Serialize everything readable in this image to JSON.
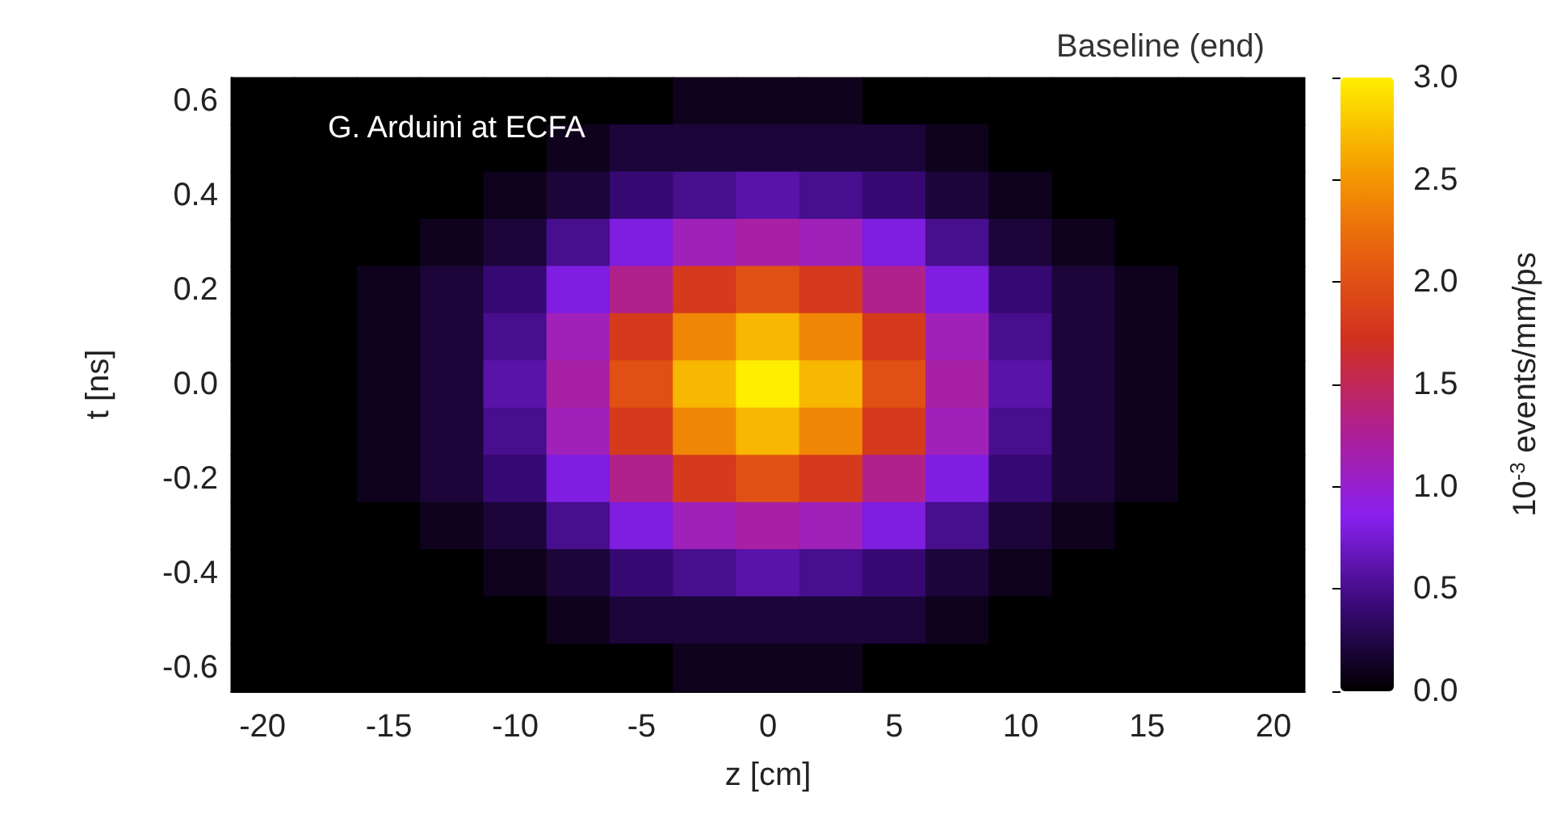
{
  "chart_data": {
    "type": "heatmap",
    "title": "Baseline (end)",
    "xlabel": "z [cm]",
    "ylabel": "t [ns]",
    "clabel": "10$^{-3}$ events/mm/ps",
    "annotations": [
      "G. Arduini at ECFA"
    ],
    "categories": [
      "-20",
      null,
      "-15",
      null,
      "-10",
      null,
      "-5",
      null,
      "0",
      null,
      "5",
      null,
      "10",
      null,
      "15",
      null,
      "20"
    ],
    "y_categories": [
      "0.6",
      null,
      "0.4",
      null,
      "0.2",
      null,
      "0.0",
      null,
      "-0.2",
      null,
      "-0.4",
      null,
      "-0.6"
    ],
    "cells": [
      [
        0,
        0,
        0,
        0,
        0,
        0,
        0,
        0.1,
        0.1,
        0.1,
        0,
        0,
        0,
        0,
        0,
        0,
        0
      ],
      [
        0,
        0,
        0,
        0,
        0,
        0.1,
        0.2,
        0.2,
        0.2,
        0.2,
        0.2,
        0.1,
        0,
        0,
        0,
        0,
        0
      ],
      [
        0,
        0,
        0,
        0,
        0.1,
        0.2,
        0.4,
        0.5,
        0.6,
        0.5,
        0.4,
        0.2,
        0.1,
        0,
        0,
        0,
        0
      ],
      [
        0,
        0,
        0,
        0.1,
        0.2,
        0.5,
        0.8,
        1.1,
        1.2,
        1.1,
        0.8,
        0.5,
        0.2,
        0.1,
        0,
        0,
        0
      ],
      [
        0,
        0,
        0.1,
        0.2,
        0.4,
        0.8,
        1.3,
        1.8,
        2.0,
        1.8,
        1.3,
        0.8,
        0.4,
        0.2,
        0.1,
        0,
        0
      ],
      [
        0,
        0,
        0.1,
        0.2,
        0.5,
        1.1,
        1.8,
        2.4,
        2.7,
        2.4,
        1.8,
        1.1,
        0.5,
        0.2,
        0.1,
        0,
        0
      ],
      [
        0,
        0,
        0.1,
        0.2,
        0.6,
        1.2,
        2.0,
        2.7,
        3.0,
        2.7,
        2.0,
        1.2,
        0.6,
        0.2,
        0.1,
        0,
        0
      ],
      [
        0,
        0,
        0.1,
        0.2,
        0.5,
        1.1,
        1.8,
        2.4,
        2.7,
        2.4,
        1.8,
        1.1,
        0.5,
        0.2,
        0.1,
        0,
        0
      ],
      [
        0,
        0,
        0.1,
        0.2,
        0.4,
        0.8,
        1.3,
        1.8,
        2.0,
        1.8,
        1.3,
        0.8,
        0.4,
        0.2,
        0.1,
        0,
        0
      ],
      [
        0,
        0,
        0,
        0.1,
        0.2,
        0.5,
        0.8,
        1.1,
        1.2,
        1.1,
        0.8,
        0.5,
        0.2,
        0.1,
        0,
        0,
        0
      ],
      [
        0,
        0,
        0,
        0,
        0.1,
        0.2,
        0.4,
        0.5,
        0.6,
        0.5,
        0.4,
        0.2,
        0.1,
        0,
        0,
        0,
        0
      ],
      [
        0,
        0,
        0,
        0,
        0,
        0.1,
        0.2,
        0.2,
        0.2,
        0.2,
        0.2,
        0.1,
        0,
        0,
        0,
        0,
        0
      ],
      [
        0,
        0,
        0,
        0,
        0,
        0,
        0,
        0.1,
        0.1,
        0.1,
        0,
        0,
        0,
        0,
        0,
        0,
        0
      ]
    ],
    "clim": [
      0,
      3
    ],
    "cticks": [
      {
        "value": 0,
        "label": "0.0"
      },
      {
        "value": 0.5,
        "label": "0.5"
      },
      {
        "value": 1,
        "label": "1.0"
      },
      {
        "value": 1.5,
        "label": "1.5"
      },
      {
        "value": 2,
        "label": "2.0"
      },
      {
        "value": 2.5,
        "label": "2.5"
      },
      {
        "value": 3,
        "label": "3.0"
      }
    ]
  }
}
